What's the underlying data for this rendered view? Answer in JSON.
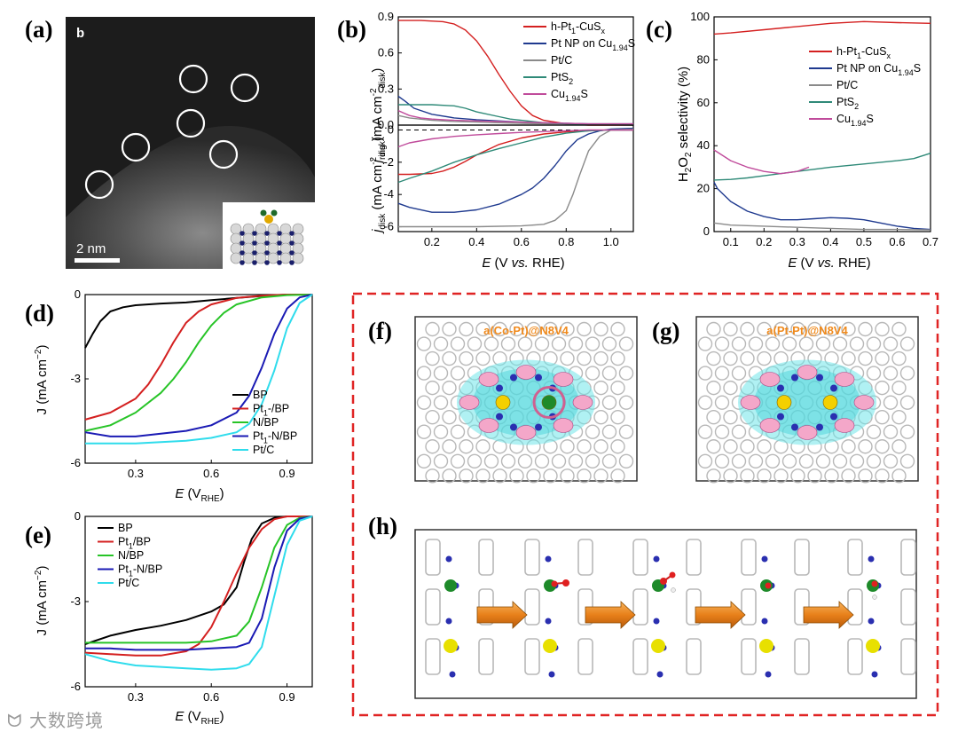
{
  "panel_labels": {
    "a": "(a)",
    "b": "(b)",
    "c": "(c)",
    "d": "(d)",
    "e": "(e)",
    "f": "(f)",
    "g": "(g)",
    "h": "(h)"
  },
  "panel_a": {
    "corner_letter": "b",
    "scale_bar": "2 nm"
  },
  "colors": {
    "red": "#d42020",
    "blue": "#1f3a8f",
    "gray": "#8a8a8a",
    "teal": "#2f8a78",
    "magenta": "#c04b9b",
    "black": "#000000",
    "green": "#27c427",
    "navy": "#1a1ab4",
    "cyan": "#2fdcec",
    "dashed_box": "#e02424",
    "orange_text": "#f08a1c"
  },
  "panel_f": {
    "title": "a(Co-Pt)@N8V4"
  },
  "panel_g": {
    "title": "a(Pt-Pt)@N8V4"
  },
  "watermark": "大数跨境",
  "chart_data": [
    {
      "id": "b_ring",
      "type": "line",
      "ylabel": "j_ring (mA cm^-2 disk)",
      "ylim": [
        0,
        0.9
      ],
      "xlim": [
        0.05,
        1.1
      ],
      "yticks": [
        "0.0",
        "0.3",
        "0.6",
        "0.9"
      ],
      "series": [
        {
          "name": "h-Pt1-CuSx",
          "color": "red",
          "x": [
            0.05,
            0.15,
            0.25,
            0.3,
            0.35,
            0.4,
            0.45,
            0.5,
            0.55,
            0.6,
            0.65,
            0.7,
            0.8,
            0.9,
            1.1
          ],
          "y": [
            0.87,
            0.87,
            0.86,
            0.84,
            0.79,
            0.7,
            0.57,
            0.42,
            0.28,
            0.16,
            0.08,
            0.04,
            0.01,
            0,
            0
          ]
        },
        {
          "name": "Pt NP on Cu1.94S",
          "color": "blue",
          "x": [
            0.05,
            0.08,
            0.12,
            0.2,
            0.3,
            0.4,
            0.5,
            0.6,
            0.7,
            0.8,
            0.9,
            1.1
          ],
          "y": [
            0.24,
            0.2,
            0.14,
            0.09,
            0.06,
            0.045,
            0.035,
            0.025,
            0.02,
            0.015,
            0.01,
            0.01
          ]
        },
        {
          "name": "Pt/C",
          "color": "gray",
          "x": [
            0.05,
            0.1,
            0.2,
            0.3,
            0.4,
            0.5,
            0.6,
            0.7,
            0.8,
            0.9,
            1.1
          ],
          "y": [
            0.08,
            0.06,
            0.04,
            0.03,
            0.025,
            0.02,
            0.015,
            0.01,
            0.01,
            0.005,
            0.005
          ]
        },
        {
          "name": "PtS2",
          "color": "teal",
          "x": [
            0.05,
            0.1,
            0.2,
            0.3,
            0.35,
            0.4,
            0.5,
            0.55,
            0.6,
            0.7,
            0.8,
            0.9,
            1.1
          ],
          "y": [
            0.17,
            0.17,
            0.17,
            0.16,
            0.14,
            0.11,
            0.07,
            0.05,
            0.04,
            0.02,
            0.01,
            0.005,
            0
          ]
        },
        {
          "name": "Cu1.94S",
          "color": "magenta",
          "x": [
            0.05,
            0.1,
            0.15,
            0.2,
            0.3,
            0.4,
            0.5,
            0.6,
            0.7,
            0.8,
            0.9,
            1.1
          ],
          "y": [
            0.12,
            0.08,
            0.06,
            0.05,
            0.04,
            0.035,
            0.03,
            0.025,
            0.02,
            0.015,
            0.01,
            0.01
          ]
        }
      ]
    },
    {
      "id": "b_disk",
      "type": "line",
      "xlabel": "E (V vs. RHE)",
      "ylabel": "j_disk (mA cm^-2 disk)",
      "ylim": [
        -6.3,
        0.3
      ],
      "xlim": [
        0.05,
        1.1
      ],
      "xticks": [
        "0.2",
        "0.4",
        "0.6",
        "0.8",
        "1.0"
      ],
      "yticks": [
        "0",
        "-2",
        "-4",
        "-6"
      ],
      "series": [
        {
          "name": "h-Pt1-CuSx",
          "color": "red",
          "x": [
            0.05,
            0.1,
            0.2,
            0.25,
            0.3,
            0.35,
            0.4,
            0.5,
            0.6,
            0.7,
            0.8,
            0.9,
            1.0,
            1.1
          ],
          "y": [
            -2.75,
            -2.75,
            -2.7,
            -2.55,
            -2.3,
            -1.95,
            -1.55,
            -0.9,
            -0.5,
            -0.25,
            -0.12,
            -0.05,
            0,
            0
          ]
        },
        {
          "name": "Pt NP on Cu1.94S",
          "color": "blue",
          "x": [
            0.05,
            0.1,
            0.2,
            0.3,
            0.4,
            0.5,
            0.6,
            0.65,
            0.7,
            0.75,
            0.8,
            0.85,
            0.9,
            0.95,
            1.0,
            1.1
          ],
          "y": [
            -4.55,
            -4.8,
            -5.1,
            -5.1,
            -4.95,
            -4.6,
            -4.0,
            -3.6,
            -3.0,
            -2.2,
            -1.3,
            -0.6,
            -0.25,
            -0.05,
            0.05,
            0.1
          ]
        },
        {
          "name": "Pt/C",
          "color": "gray",
          "x": [
            0.05,
            0.2,
            0.4,
            0.6,
            0.7,
            0.75,
            0.8,
            0.83,
            0.86,
            0.9,
            0.95,
            1.0,
            1.1
          ],
          "y": [
            -6.0,
            -6.0,
            -6.0,
            -5.95,
            -5.85,
            -5.6,
            -5.0,
            -4.0,
            -2.8,
            -1.3,
            -0.4,
            0,
            0.05
          ]
        },
        {
          "name": "PtS2",
          "color": "teal",
          "x": [
            0.05,
            0.1,
            0.2,
            0.3,
            0.4,
            0.5,
            0.6,
            0.7,
            0.8,
            0.9,
            1.0,
            1.1
          ],
          "y": [
            -3.25,
            -3.0,
            -2.55,
            -2.0,
            -1.55,
            -1.15,
            -0.8,
            -0.45,
            -0.2,
            -0.05,
            0,
            0
          ]
        },
        {
          "name": "Cu1.94S",
          "color": "magenta",
          "x": [
            0.05,
            0.1,
            0.2,
            0.3,
            0.4,
            0.5,
            0.6,
            0.7,
            0.8,
            0.9,
            1.0,
            1.1
          ],
          "y": [
            -1.05,
            -0.8,
            -0.55,
            -0.4,
            -0.3,
            -0.22,
            -0.15,
            -0.1,
            -0.05,
            0,
            0,
            0
          ]
        }
      ]
    },
    {
      "id": "c",
      "type": "line",
      "xlabel": "E (V vs. RHE)",
      "ylabel": "H2O2 selectivity (%)",
      "ylim": [
        0,
        100
      ],
      "xlim": [
        0.05,
        0.7
      ],
      "xticks": [
        "0.1",
        "0.2",
        "0.3",
        "0.4",
        "0.5",
        "0.6",
        "0.7"
      ],
      "yticks": [
        "0",
        "20",
        "40",
        "60",
        "80",
        "100"
      ],
      "series": [
        {
          "name": "h-Pt1-CuSx",
          "color": "red",
          "x": [
            0.05,
            0.1,
            0.2,
            0.3,
            0.4,
            0.5,
            0.6,
            0.7
          ],
          "y": [
            92,
            92.5,
            94,
            95.5,
            97,
            97.8,
            97.3,
            97
          ]
        },
        {
          "name": "Pt NP on Cu1.94S",
          "color": "blue",
          "x": [
            0.05,
            0.06,
            0.1,
            0.15,
            0.2,
            0.25,
            0.3,
            0.35,
            0.4,
            0.45,
            0.5,
            0.55,
            0.6,
            0.65,
            0.7
          ],
          "y": [
            23,
            20,
            14,
            9.5,
            7,
            5.5,
            5.5,
            6,
            6.5,
            6.2,
            5.5,
            4,
            2.5,
            1.5,
            1
          ]
        },
        {
          "name": "Pt/C",
          "color": "gray",
          "x": [
            0.05,
            0.1,
            0.2,
            0.3,
            0.4,
            0.5,
            0.6,
            0.7
          ],
          "y": [
            4,
            3,
            2.5,
            2,
            1.5,
            1,
            1,
            0.8
          ]
        },
        {
          "name": "PtS2",
          "color": "teal",
          "x": [
            0.05,
            0.1,
            0.15,
            0.2,
            0.3,
            0.4,
            0.5,
            0.6,
            0.65,
            0.7
          ],
          "y": [
            24,
            24.3,
            25,
            26,
            28,
            30,
            31.5,
            33,
            34,
            36.5
          ]
        },
        {
          "name": "Cu1.94S",
          "color": "magenta",
          "x": [
            0.05,
            0.1,
            0.15,
            0.2,
            0.25,
            0.3,
            0.335
          ],
          "y": [
            38,
            33,
            30,
            28,
            27,
            28,
            30
          ]
        }
      ]
    },
    {
      "id": "d",
      "type": "line",
      "xlabel": "E (V_RHE)",
      "ylabel": "J (mA cm^-2)",
      "ylim": [
        -6,
        0
      ],
      "xlim": [
        0.1,
        1.0
      ],
      "xticks": [
        "0.3",
        "0.6",
        "0.9"
      ],
      "yticks": [
        "0",
        "-3",
        "-6"
      ],
      "series": [
        {
          "name": "BP",
          "color": "black",
          "x": [
            0.1,
            0.13,
            0.16,
            0.2,
            0.25,
            0.3,
            0.4,
            0.5,
            0.6,
            0.7,
            0.8,
            0.9,
            1.0
          ],
          "y": [
            -1.9,
            -1.4,
            -0.95,
            -0.6,
            -0.45,
            -0.38,
            -0.32,
            -0.28,
            -0.2,
            -0.12,
            -0.05,
            0,
            0
          ]
        },
        {
          "name": "Pt1-/BP",
          "color": "red",
          "x": [
            0.1,
            0.2,
            0.3,
            0.35,
            0.4,
            0.45,
            0.5,
            0.55,
            0.6,
            0.7,
            0.8,
            0.9,
            1.0
          ],
          "y": [
            -4.45,
            -4.2,
            -3.7,
            -3.2,
            -2.5,
            -1.7,
            -1.0,
            -0.6,
            -0.35,
            -0.12,
            -0.04,
            0,
            0
          ]
        },
        {
          "name": "N/BP",
          "color": "green",
          "x": [
            0.1,
            0.2,
            0.3,
            0.4,
            0.45,
            0.5,
            0.55,
            0.6,
            0.65,
            0.7,
            0.8,
            0.9,
            1.0
          ],
          "y": [
            -4.85,
            -4.65,
            -4.2,
            -3.5,
            -3.0,
            -2.4,
            -1.7,
            -1.1,
            -0.65,
            -0.35,
            -0.1,
            -0.02,
            0
          ]
        },
        {
          "name": "Pt1-N/BP",
          "color": "navy",
          "x": [
            0.1,
            0.2,
            0.3,
            0.4,
            0.5,
            0.6,
            0.7,
            0.75,
            0.8,
            0.85,
            0.9,
            0.95,
            1.0
          ],
          "y": [
            -4.9,
            -5.05,
            -5.05,
            -4.95,
            -4.85,
            -4.65,
            -4.2,
            -3.6,
            -2.6,
            -1.4,
            -0.5,
            -0.1,
            0
          ]
        },
        {
          "name": "Pt/C",
          "color": "cyan",
          "x": [
            0.1,
            0.2,
            0.3,
            0.4,
            0.5,
            0.6,
            0.7,
            0.75,
            0.8,
            0.85,
            0.9,
            0.95,
            1.0
          ],
          "y": [
            -5.3,
            -5.3,
            -5.3,
            -5.25,
            -5.2,
            -5.1,
            -4.9,
            -4.6,
            -3.9,
            -2.7,
            -1.2,
            -0.3,
            0
          ]
        }
      ]
    },
    {
      "id": "e",
      "type": "line",
      "xlabel": "E (V_RHE)",
      "ylabel": "J (mA cm^-2)",
      "ylim": [
        -6,
        0
      ],
      "xlim": [
        0.1,
        1.0
      ],
      "xticks": [
        "0.3",
        "0.6",
        "0.9"
      ],
      "yticks": [
        "0",
        "-3",
        "-6"
      ],
      "series": [
        {
          "name": "BP",
          "color": "black",
          "x": [
            0.1,
            0.2,
            0.3,
            0.4,
            0.5,
            0.6,
            0.65,
            0.7,
            0.73,
            0.76,
            0.8,
            0.85,
            0.9,
            0.95,
            1.0
          ],
          "y": [
            -4.5,
            -4.2,
            -4.0,
            -3.85,
            -3.65,
            -3.35,
            -3.1,
            -2.5,
            -1.6,
            -0.8,
            -0.25,
            -0.05,
            0,
            0,
            0
          ]
        },
        {
          "name": "Pt1/BP",
          "color": "red",
          "x": [
            0.1,
            0.2,
            0.3,
            0.4,
            0.5,
            0.55,
            0.6,
            0.65,
            0.7,
            0.75,
            0.8,
            0.85,
            0.9,
            1.0
          ],
          "y": [
            -4.8,
            -4.85,
            -4.9,
            -4.9,
            -4.75,
            -4.5,
            -3.9,
            -3.0,
            -2.0,
            -1.1,
            -0.45,
            -0.1,
            0,
            0
          ]
        },
        {
          "name": "N/BP",
          "color": "green",
          "x": [
            0.1,
            0.2,
            0.3,
            0.4,
            0.5,
            0.6,
            0.7,
            0.75,
            0.8,
            0.85,
            0.9,
            0.95,
            1.0
          ],
          "y": [
            -4.45,
            -4.45,
            -4.45,
            -4.45,
            -4.45,
            -4.4,
            -4.2,
            -3.7,
            -2.5,
            -1.1,
            -0.3,
            -0.05,
            0
          ]
        },
        {
          "name": "Pt1-N/BP",
          "color": "navy",
          "x": [
            0.1,
            0.2,
            0.3,
            0.4,
            0.5,
            0.6,
            0.7,
            0.75,
            0.8,
            0.85,
            0.9,
            0.95,
            1.0
          ],
          "y": [
            -4.65,
            -4.65,
            -4.7,
            -4.7,
            -4.7,
            -4.65,
            -4.6,
            -4.45,
            -3.6,
            -1.8,
            -0.5,
            -0.08,
            0
          ]
        },
        {
          "name": "Pt/C",
          "color": "cyan",
          "x": [
            0.1,
            0.2,
            0.3,
            0.4,
            0.5,
            0.6,
            0.7,
            0.75,
            0.8,
            0.85,
            0.9,
            0.95,
            1.0
          ],
          "y": [
            -4.85,
            -5.1,
            -5.25,
            -5.3,
            -5.35,
            -5.4,
            -5.35,
            -5.2,
            -4.6,
            -2.8,
            -1.0,
            -0.15,
            0
          ]
        }
      ]
    }
  ]
}
